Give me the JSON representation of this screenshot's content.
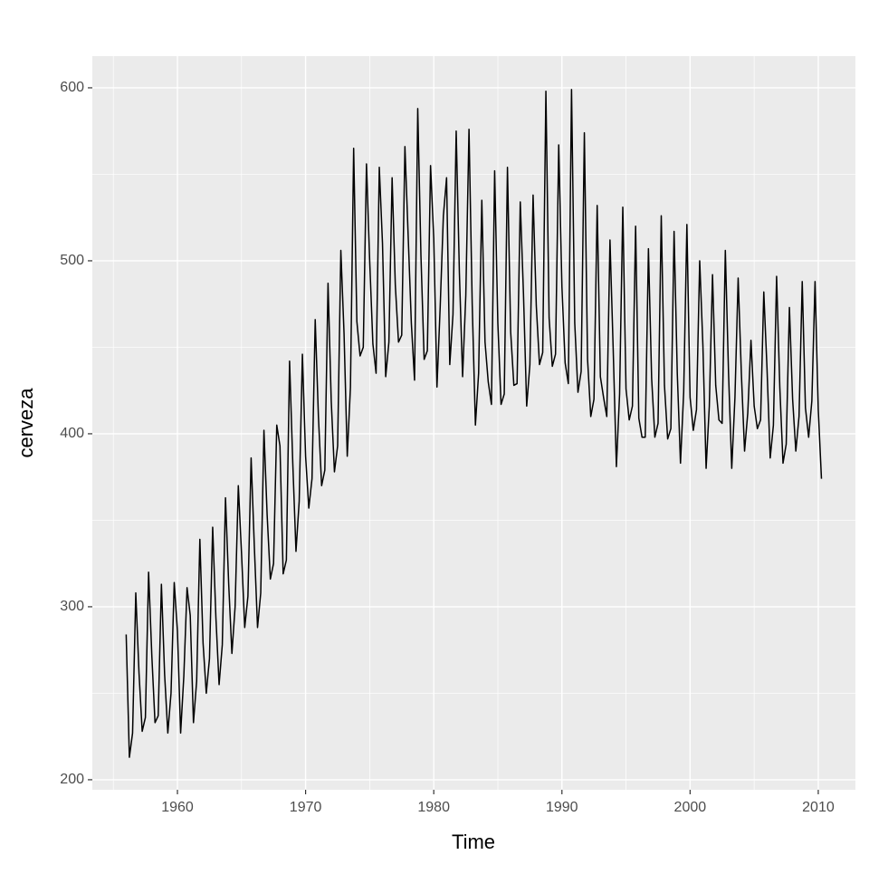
{
  "chart_data": {
    "type": "line",
    "xlabel": "Time",
    "ylabel": "cerveza",
    "color": "#000000",
    "grid": true,
    "xlim": [
      1953.36,
      2012.9
    ],
    "xticks": [
      1960,
      1970,
      1980,
      1990,
      2000,
      2010
    ],
    "ylim": [
      194.2,
      618.3
    ],
    "yticks": [
      200,
      300,
      400,
      500,
      600
    ],
    "x": [
      1956,
      1956.25,
      1956.5,
      1956.75,
      1957,
      1957.25,
      1957.5,
      1957.75,
      1958,
      1958.25,
      1958.5,
      1958.75,
      1959,
      1959.25,
      1959.5,
      1959.75,
      1960,
      1960.25,
      1960.5,
      1960.75,
      1961,
      1961.25,
      1961.5,
      1961.75,
      1962,
      1962.25,
      1962.5,
      1962.75,
      1963,
      1963.25,
      1963.5,
      1963.75,
      1964,
      1964.25,
      1964.5,
      1964.75,
      1965,
      1965.25,
      1965.5,
      1965.75,
      1966,
      1966.25,
      1966.5,
      1966.75,
      1967,
      1967.25,
      1967.5,
      1967.75,
      1968,
      1968.25,
      1968.5,
      1968.75,
      1969,
      1969.25,
      1969.5,
      1969.75,
      1970,
      1970.25,
      1970.5,
      1970.75,
      1971,
      1971.25,
      1971.5,
      1971.75,
      1972,
      1972.25,
      1972.5,
      1972.75,
      1973,
      1973.25,
      1973.5,
      1973.75,
      1974,
      1974.25,
      1974.5,
      1974.75,
      1975,
      1975.25,
      1975.5,
      1975.75,
      1976,
      1976.25,
      1976.5,
      1976.75,
      1977,
      1977.25,
      1977.5,
      1977.75,
      1978,
      1978.25,
      1978.5,
      1978.75,
      1979,
      1979.25,
      1979.5,
      1979.75,
      1980,
      1980.25,
      1980.5,
      1980.75,
      1981,
      1981.25,
      1981.5,
      1981.75,
      1982,
      1982.25,
      1982.5,
      1982.75,
      1983,
      1983.25,
      1983.5,
      1983.75,
      1984,
      1984.25,
      1984.5,
      1984.75,
      1985,
      1985.25,
      1985.5,
      1985.75,
      1986,
      1986.25,
      1986.5,
      1986.75,
      1987,
      1987.25,
      1987.5,
      1987.75,
      1988,
      1988.25,
      1988.5,
      1988.75,
      1989,
      1989.25,
      1989.5,
      1989.75,
      1990,
      1990.25,
      1990.5,
      1990.75,
      1991,
      1991.25,
      1991.5,
      1991.75,
      1992,
      1992.25,
      1992.5,
      1992.75,
      1993,
      1993.25,
      1993.5,
      1993.75,
      1994,
      1994.25,
      1994.5,
      1994.75,
      1995,
      1995.25,
      1995.5,
      1995.75,
      1996,
      1996.25,
      1996.5,
      1996.75,
      1997,
      1997.25,
      1997.5,
      1997.75,
      1998,
      1998.25,
      1998.5,
      1998.75,
      1999,
      1999.25,
      1999.5,
      1999.75,
      2000,
      2000.25,
      2000.5,
      2000.75,
      2001,
      2001.25,
      2001.5,
      2001.75,
      2002,
      2002.25,
      2002.5,
      2002.75,
      2003,
      2003.25,
      2003.5,
      2003.75,
      2004,
      2004.25,
      2004.5,
      2004.75,
      2005,
      2005.25,
      2005.5,
      2005.75,
      2006,
      2006.25,
      2006.5,
      2006.75,
      2007,
      2007.25,
      2007.5,
      2007.75,
      2008,
      2008.25,
      2008.5,
      2008.75,
      2009,
      2009.25,
      2009.5,
      2009.75,
      2010,
      2010.25
    ],
    "values": [
      284,
      213,
      227,
      308,
      262,
      228,
      236,
      320,
      272,
      233,
      237,
      313,
      261,
      227,
      250,
      314,
      286,
      227,
      260,
      311,
      295,
      233,
      257,
      339,
      279,
      250,
      270,
      346,
      294,
      255,
      278,
      363,
      313,
      273,
      300,
      370,
      331,
      288,
      306,
      386,
      335,
      288,
      308,
      402,
      353,
      316,
      325,
      405,
      393,
      319,
      327,
      442,
      383,
      332,
      361,
      446,
      387,
      357,
      374,
      466,
      410,
      370,
      379,
      487,
      419,
      378,
      393,
      506,
      458,
      387,
      427,
      565,
      465,
      445,
      450,
      556,
      500,
      452,
      435,
      554,
      510,
      433,
      453,
      548,
      486,
      453,
      457,
      566,
      515,
      464,
      431,
      588,
      503,
      443,
      448,
      555,
      513,
      427,
      473,
      526,
      548,
      440,
      469,
      575,
      493,
      433,
      480,
      576,
      475,
      405,
      435,
      535,
      453,
      430,
      417,
      552,
      464,
      417,
      423,
      554,
      459,
      428,
      429,
      534,
      481,
      416,
      440,
      538,
      474,
      440,
      447,
      598,
      467,
      439,
      446,
      567,
      485,
      441,
      429,
      599,
      464,
      424,
      436,
      574,
      443,
      410,
      420,
      532,
      433,
      421,
      410,
      512,
      449,
      381,
      423,
      531,
      426,
      408,
      416,
      520,
      409,
      398,
      398,
      507,
      432,
      398,
      406,
      526,
      428,
      397,
      403,
      517,
      435,
      383,
      424,
      521,
      421,
      402,
      414,
      500,
      451,
      380,
      416,
      492,
      428,
      408,
      406,
      506,
      435,
      380,
      421,
      490,
      435,
      390,
      412,
      454,
      416,
      403,
      408,
      482,
      438,
      386,
      405,
      491,
      427,
      383,
      394,
      473,
      420,
      390,
      410,
      488,
      415,
      398,
      419,
      488,
      414,
      374
    ]
  }
}
